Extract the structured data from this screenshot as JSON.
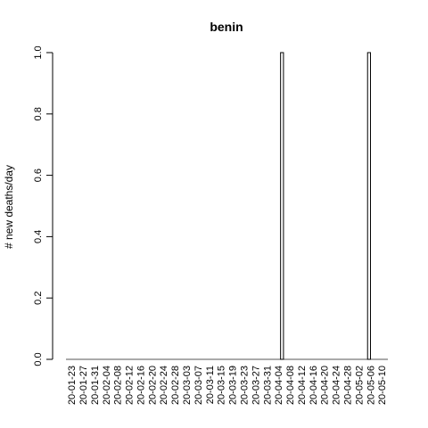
{
  "chart_data": {
    "type": "bar",
    "title": "benin",
    "xlabel": "",
    "ylabel": "# new deaths/day",
    "ylim": [
      0,
      1
    ],
    "y_ticks": [
      "0.0",
      "0.2",
      "0.4",
      "0.6",
      "0.8",
      "1.0"
    ],
    "x_tick_labels": [
      "20-01-23",
      "20-01-27",
      "20-01-31",
      "20-02-04",
      "20-02-08",
      "20-02-12",
      "20-02-16",
      "20-02-20",
      "20-02-24",
      "20-02-28",
      "20-03-03",
      "20-03-07",
      "20-03-11",
      "20-03-15",
      "20-03-19",
      "20-03-23",
      "20-03-27",
      "20-03-31",
      "20-04-04",
      "20-04-08",
      "20-04-12",
      "20-04-16",
      "20-04-20",
      "20-04-24",
      "20-04-28",
      "20-05-02",
      "20-05-06",
      "20-05-10"
    ],
    "x_start": "2020-01-23",
    "x_end": "2020-05-12",
    "bars": [
      {
        "date": "2020-04-06",
        "value": 1
      },
      {
        "date": "2020-05-06",
        "value": 1
      }
    ],
    "grid": false,
    "legend": "none",
    "bar_color": "#ffffff",
    "bar_border": "#000000"
  }
}
